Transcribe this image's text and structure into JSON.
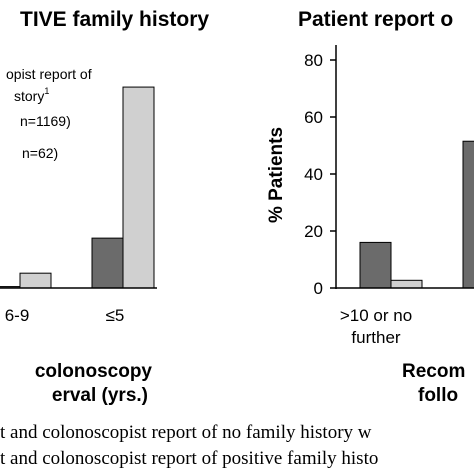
{
  "colors": {
    "dark_bar": "#6b6b6b",
    "light_bar": "#d0d0d0",
    "axis": "#000000"
  },
  "chart_data": [
    {
      "type": "bar",
      "title": "TIVE family history",
      "xlabel_line1": "colonoscopy",
      "xlabel_line2": "erval (yrs.)",
      "categories": [
        "6-9",
        "≤5"
      ],
      "ylim": [
        0,
        80
      ],
      "series": [
        {
          "name": "dark",
          "values": [
            0.5,
            17.5
          ]
        },
        {
          "name": "light",
          "values": [
            5.2,
            70.5
          ]
        }
      ],
      "legend": {
        "line1": "opist report of",
        "line2": "story",
        "line2_sup": "1",
        "line3": "n=1169)",
        "line4": "n=62)"
      }
    },
    {
      "type": "bar",
      "title": "Patient report o",
      "ylabel": "% Patients",
      "xlabel_line1": "Recom",
      "xlabel_line2": "follo",
      "yticks": [
        "0",
        "20",
        "40",
        "60",
        "80"
      ],
      "ylim": [
        0,
        80
      ],
      "categories": [
        ">10 or no further",
        ""
      ],
      "category_lines": [
        ">10 or no",
        "further"
      ],
      "series": [
        {
          "name": "dark",
          "values": [
            16,
            51.5
          ]
        },
        {
          "name": "light",
          "values": [
            2.7,
            null
          ]
        }
      ]
    }
  ],
  "caption": {
    "line1": "t and colonoscopist report of no family history w",
    "line2": "t and colonoscopist report of positive family histo"
  }
}
